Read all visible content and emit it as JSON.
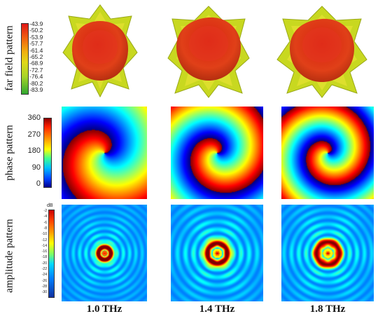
{
  "row_labels": {
    "far_field": "far field pattern",
    "phase": "phase pattern",
    "amplitude": "amplitude pattern"
  },
  "far_field_scale": {
    "ticks": [
      "-43.9",
      "-50.2",
      "-53.9",
      "-57.7",
      "-61.4",
      "-65.2",
      "-68.9",
      "-72.7",
      "-76.4",
      "-80.2",
      "-83.9"
    ],
    "colors": [
      "#e02020",
      "#e85018",
      "#f08010",
      "#f0b010",
      "#e8d818",
      "#c8dc20",
      "#a0d428",
      "#78c830",
      "#58bc30",
      "#40b030",
      "#30a830"
    ]
  },
  "phase_scale": {
    "ticks": [
      "360",
      "270",
      "180",
      "90",
      "0"
    ]
  },
  "amplitude_scale": {
    "unit": "dB",
    "ticks": [
      "-2",
      "-4",
      "-6",
      "-8",
      "-10",
      "-12",
      "-14",
      "-16",
      "-18",
      "-20",
      "-22",
      "-24",
      "-26",
      "-28",
      "-30"
    ]
  },
  "frequencies": [
    "1.0 THz",
    "1.4 THz",
    "1.8 THz"
  ]
}
